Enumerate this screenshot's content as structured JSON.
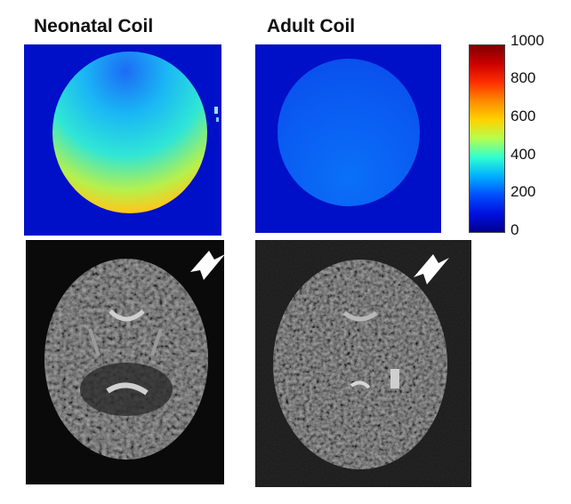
{
  "labels": {
    "left_title": "Neonatal Coil",
    "right_title": "Adult Coil"
  },
  "colorbar": {
    "ticks": [
      "1000",
      "800",
      "600",
      "400",
      "200",
      "0"
    ],
    "colormap": "jet",
    "range": [
      0,
      1000
    ]
  },
  "colors": {
    "map_background": "#0010c8",
    "neonatal_center": "#19c8f0",
    "neonatal_edge": "#ffb414",
    "adult_fill": "#0a64f5",
    "mri_background": "#0a0a0a",
    "arrow": "#ffffff"
  },
  "icons": {
    "arrow": "white-arrow-icon"
  }
}
